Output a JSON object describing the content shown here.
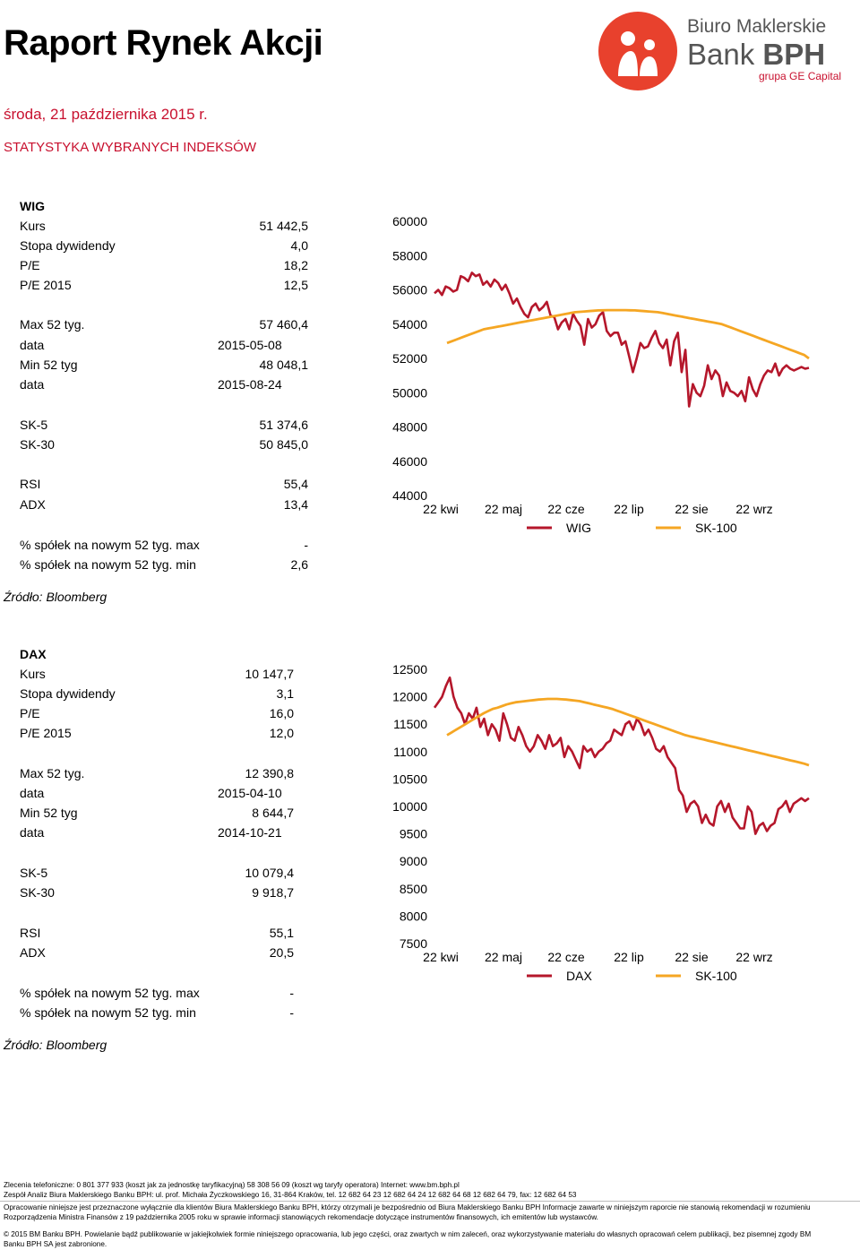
{
  "header": {
    "title": "Raport Rynek Akcji",
    "date": "środa, 21 października 2015 r.",
    "section": "STATYSTYKA WYBRANYCH INDEKSÓW"
  },
  "logo": {
    "line1": "Biuro Maklerskie",
    "line2a": "Bank ",
    "line2b": "BPH",
    "line3": "grupa GE Capital",
    "accent": "#c8102e"
  },
  "wig": {
    "title": "WIG",
    "rows": [
      {
        "label": "Kurs",
        "value": "51 442,5"
      },
      {
        "label": "Stopa dywidendy",
        "value": "4,0"
      },
      {
        "label": "P/E",
        "value": "18,2"
      },
      {
        "label": "P/E 2015",
        "value": "12,5"
      },
      {
        "label": "Max 52 tyg.",
        "value": "57 460,4"
      },
      {
        "label": "data",
        "value": "2015-05-08"
      },
      {
        "label": "Min 52 tyg",
        "value": "48 048,1"
      },
      {
        "label": "data",
        "value": "2015-08-24"
      },
      {
        "label": "SK-5",
        "value": "51 374,6"
      },
      {
        "label": "SK-30",
        "value": "50 845,0"
      },
      {
        "label": "RSI",
        "value": "55,4"
      },
      {
        "label": "ADX",
        "value": "13,4"
      },
      {
        "label": "% spółek na nowym 52 tyg. max",
        "value": "-"
      },
      {
        "label": "% spółek na nowym 52 tyg. min",
        "value": "2,6"
      }
    ],
    "source": "Źródło: Bloomberg"
  },
  "dax": {
    "title": "DAX",
    "rows": [
      {
        "label": "Kurs",
        "value": "10 147,7"
      },
      {
        "label": "Stopa dywidendy",
        "value": "3,1"
      },
      {
        "label": "P/E",
        "value": "16,0"
      },
      {
        "label": "P/E 2015",
        "value": "12,0"
      },
      {
        "label": "Max 52 tyg.",
        "value": "12 390,8"
      },
      {
        "label": "data",
        "value": "2015-04-10"
      },
      {
        "label": "Min 52 tyg",
        "value": "8 644,7"
      },
      {
        "label": "data",
        "value": "2014-10-21"
      },
      {
        "label": "SK-5",
        "value": "10 079,4"
      },
      {
        "label": "SK-30",
        "value": "9 918,7"
      },
      {
        "label": "RSI",
        "value": "55,1"
      },
      {
        "label": "ADX",
        "value": "20,5"
      },
      {
        "label": "% spółek na nowym 52 tyg. max",
        "value": "-"
      },
      {
        "label": "% spółek na nowym 52 tyg. min",
        "value": "-"
      }
    ],
    "source": "Źródło: Bloomberg"
  },
  "chart_data": [
    {
      "type": "line",
      "x_ticks": [
        "22 kwi",
        "22 maj",
        "22 cze",
        "22 lip",
        "22 sie",
        "22 wrz"
      ],
      "ylim": [
        44000,
        60000
      ],
      "y_ticks": [
        60000,
        58000,
        56000,
        54000,
        52000,
        50000,
        48000,
        46000,
        44000
      ],
      "legend_position": "bottom",
      "series": [
        {
          "name": "WIG",
          "color": "#b5172b",
          "values": [
            55800,
            56000,
            55700,
            56200,
            56100,
            55900,
            56000,
            56800,
            56700,
            56500,
            57000,
            56800,
            56900,
            56300,
            56500,
            56200,
            56600,
            56400,
            56000,
            56300,
            55800,
            55200,
            55500,
            55000,
            54600,
            54400,
            55000,
            55200,
            54800,
            55000,
            55300,
            54500,
            54400,
            53700,
            54100,
            54300,
            53700,
            54600,
            54200,
            53900,
            52800,
            54300,
            53800,
            54000,
            54500,
            54700,
            53600,
            53300,
            53500,
            53500,
            52800,
            53000,
            52100,
            51200,
            52000,
            52900,
            52600,
            52700,
            53200,
            53600,
            52900,
            52600,
            53100,
            51600,
            53000,
            53500,
            51200,
            52500,
            49200,
            50500,
            50000,
            49800,
            50400,
            51600,
            50800,
            51300,
            51000,
            49800,
            50600,
            50100,
            50000,
            49800,
            50100,
            49500,
            50900,
            50200,
            49800,
            50500,
            51000,
            51300,
            51200,
            51700,
            51000,
            51400,
            51600,
            51400,
            51300,
            51400,
            51500,
            51400,
            51450
          ]
        },
        {
          "name": "SK-100",
          "color": "#f5a623",
          "values": [
            52900,
            53000,
            53100,
            53200,
            53300,
            53400,
            53500,
            53600,
            53700,
            53750,
            53800,
            53850,
            53900,
            53950,
            54000,
            54050,
            54100,
            54150,
            54200,
            54250,
            54300,
            54350,
            54400,
            54450,
            54500,
            54550,
            54600,
            54650,
            54700,
            54720,
            54740,
            54760,
            54780,
            54800,
            54810,
            54820,
            54820,
            54820,
            54820,
            54820,
            54810,
            54800,
            54780,
            54760,
            54740,
            54720,
            54700,
            54650,
            54600,
            54550,
            54500,
            54450,
            54400,
            54350,
            54300,
            54250,
            54200,
            54150,
            54100,
            54050,
            54000,
            53900,
            53800,
            53700,
            53600,
            53500,
            53400,
            53300,
            53200,
            53100,
            53000,
            52900,
            52800,
            52700,
            52600,
            52500,
            52400,
            52300,
            52200,
            52000
          ]
        }
      ]
    },
    {
      "type": "line",
      "x_ticks": [
        "22 kwi",
        "22 maj",
        "22 cze",
        "22 lip",
        "22 sie",
        "22 wrz"
      ],
      "ylim": [
        7500,
        12500
      ],
      "y_ticks": [
        12500,
        12000,
        11500,
        11000,
        10500,
        10000,
        9500,
        9000,
        8500,
        8000,
        7500
      ],
      "legend_position": "bottom",
      "series": [
        {
          "name": "DAX",
          "color": "#b5172b",
          "values": [
            11800,
            11900,
            12000,
            12200,
            12350,
            12000,
            11800,
            11700,
            11500,
            11700,
            11600,
            11800,
            11450,
            11600,
            11300,
            11500,
            11400,
            11200,
            11700,
            11500,
            11250,
            11200,
            11450,
            11300,
            11100,
            11000,
            11100,
            11300,
            11200,
            11050,
            11300,
            11100,
            11150,
            11250,
            10900,
            11100,
            11000,
            10850,
            10700,
            11100,
            11000,
            11050,
            10900,
            11000,
            11050,
            11150,
            11200,
            11400,
            11350,
            11300,
            11500,
            11550,
            11400,
            11600,
            11500,
            11300,
            11400,
            11250,
            11050,
            11000,
            11100,
            10900,
            10800,
            10700,
            10300,
            10200,
            9900,
            10050,
            10100,
            10000,
            9700,
            9850,
            9700,
            9650,
            10000,
            10100,
            9900,
            10050,
            9800,
            9700,
            9600,
            9600,
            10000,
            9900,
            9500,
            9650,
            9700,
            9550,
            9650,
            9700,
            9950,
            10000,
            10100,
            9900,
            10050,
            10100,
            10150,
            10100,
            10150
          ]
        },
        {
          "name": "SK-100",
          "color": "#f5a623",
          "values": [
            11300,
            11350,
            11400,
            11450,
            11500,
            11550,
            11600,
            11650,
            11700,
            11740,
            11780,
            11800,
            11830,
            11860,
            11880,
            11900,
            11910,
            11920,
            11930,
            11940,
            11950,
            11955,
            11960,
            11960,
            11960,
            11955,
            11950,
            11940,
            11930,
            11920,
            11900,
            11880,
            11860,
            11840,
            11820,
            11800,
            11780,
            11750,
            11720,
            11690,
            11660,
            11630,
            11600,
            11570,
            11540,
            11510,
            11480,
            11450,
            11420,
            11390,
            11360,
            11330,
            11300,
            11280,
            11260,
            11240,
            11220,
            11200,
            11180,
            11160,
            11140,
            11120,
            11100,
            11080,
            11060,
            11040,
            11020,
            11000,
            10980,
            10960,
            10940,
            10920,
            10900,
            10880,
            10860,
            10840,
            10820,
            10800,
            10780,
            10750
          ]
        }
      ]
    }
  ],
  "footer": {
    "line1": "Zlecenia telefoniczne: 0  801  377  933 (koszt jak za jednostkę taryfikacyjną)   58 308 56 09 (koszt wg taryfy operatora)   Internet: www.bm.bph.pl",
    "line2": "Zespół Analiz Biura Maklerskiego Banku BPH: ul. prof. Michała Życzkowskiego 16, 31-864 Kraków,  tel. 12 682 64 23   12 682 64 24   12  682 64 68   12 682 64 79,   fax: 12  682 64 53",
    "line3": "Opracowanie niniejsze jest przeznaczone wyłącznie dla klientów Biura Maklerskiego Banku BPH, którzy otrzymali je bezpośrednio od Biura Maklerskiego Banku BPH Informacje zawarte w niniejszym raporcie nie stanowią rekomendacji w rozumieniu",
    "line4": "Rozporządzenia Ministra Finansów z 19 października 2005 roku w sprawie informacji stanowiących rekomendacje dotyczące instrumentów finansowych, ich emitentów lub wystawców.",
    "line5": "© 2015 BM Banku BPH. Powielanie bądź publikowanie w jakiejkolwiek formie niniejszego opracowania, lub jego części, oraz zwartych w nim zaleceń, oraz wykorzystywanie materiału do własnych opracowań celem publikacji, bez pisemnej zgody BM",
    "line6": "Banku BPH SA jest zabronione."
  }
}
